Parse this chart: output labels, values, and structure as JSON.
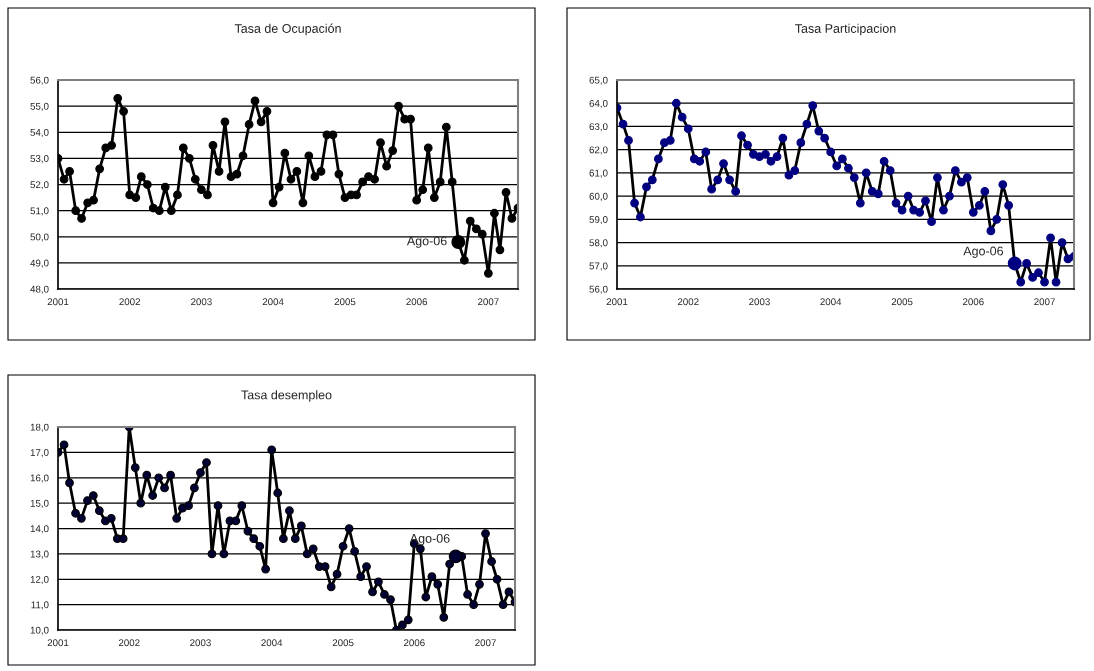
{
  "chart_data": [
    {
      "type": "line",
      "title": "Tasa de Ocupación",
      "marker": "circle",
      "line_style": "solid",
      "grid": "y",
      "legend": false,
      "x": [
        "2001-01",
        "2001-02",
        "2001-03",
        "2001-04",
        "2001-05",
        "2001-06",
        "2001-07",
        "2001-08",
        "2001-09",
        "2001-10",
        "2001-11",
        "2001-12",
        "2002-01",
        "2002-02",
        "2002-03",
        "2002-04",
        "2002-05",
        "2002-06",
        "2002-07",
        "2002-08",
        "2002-09",
        "2002-10",
        "2002-11",
        "2002-12",
        "2003-01",
        "2003-02",
        "2003-03",
        "2003-04",
        "2003-05",
        "2003-06",
        "2003-07",
        "2003-08",
        "2003-09",
        "2003-10",
        "2003-11",
        "2003-12",
        "2004-01",
        "2004-02",
        "2004-03",
        "2004-04",
        "2004-05",
        "2004-06",
        "2004-07",
        "2004-08",
        "2004-09",
        "2004-10",
        "2004-11",
        "2004-12",
        "2005-01",
        "2005-02",
        "2005-03",
        "2005-04",
        "2005-05",
        "2005-06",
        "2005-07",
        "2005-08",
        "2005-09",
        "2005-10",
        "2005-11",
        "2005-12",
        "2006-01",
        "2006-02",
        "2006-03",
        "2006-04",
        "2006-05",
        "2006-06",
        "2006-07",
        "2006-08",
        "2006-09",
        "2006-10",
        "2006-11",
        "2006-12",
        "2007-01",
        "2007-02",
        "2007-03",
        "2007-04",
        "2007-05",
        "2007-06"
      ],
      "series": [
        {
          "color": "#000000",
          "values": [
            53.0,
            52.2,
            52.5,
            51.0,
            50.7,
            51.3,
            51.4,
            52.6,
            53.4,
            53.5,
            55.3,
            54.8,
            51.6,
            51.5,
            52.3,
            52.0,
            51.1,
            51.0,
            51.9,
            51.0,
            51.6,
            53.4,
            53.0,
            52.2,
            51.8,
            51.6,
            53.5,
            52.5,
            54.4,
            52.3,
            52.4,
            53.1,
            54.3,
            55.2,
            54.4,
            54.8,
            51.3,
            51.9,
            53.2,
            52.2,
            52.5,
            51.3,
            53.1,
            52.3,
            52.5,
            53.9,
            53.9,
            52.4,
            51.5,
            51.6,
            51.6,
            52.1,
            52.3,
            52.2,
            53.6,
            52.7,
            53.3,
            55.0,
            54.5,
            54.5,
            51.4,
            51.8,
            53.4,
            51.5,
            52.1,
            54.2,
            52.1,
            49.8,
            49.1,
            50.6,
            50.3,
            50.1,
            48.6,
            50.9,
            49.5,
            51.7,
            50.7,
            51.1
          ]
        }
      ],
      "annotations": [
        {
          "text": "Ago-06",
          "x": "2006-08",
          "y": 49.8
        }
      ],
      "xlim": [
        "2001-01",
        "2007-06"
      ],
      "xticks": [
        {
          "value": "2001-01",
          "label": "2001"
        },
        {
          "value": "2002-01",
          "label": "2002"
        },
        {
          "value": "2003-01",
          "label": "2003"
        },
        {
          "value": "2004-01",
          "label": "2004"
        },
        {
          "value": "2005-01",
          "label": "2005"
        },
        {
          "value": "2006-01",
          "label": "2006"
        },
        {
          "value": "2007-01",
          "label": "2007"
        }
      ],
      "ylim": [
        48,
        56
      ],
      "yticks": [
        {
          "value": 48,
          "label": "48,0"
        },
        {
          "value": 49,
          "label": "49,0"
        },
        {
          "value": 50,
          "label": "50,0"
        },
        {
          "value": 51,
          "label": "51,0"
        },
        {
          "value": 52,
          "label": "52,0"
        },
        {
          "value": 53,
          "label": "53,0"
        },
        {
          "value": 54,
          "label": "54,0"
        },
        {
          "value": 55,
          "label": "55,0"
        },
        {
          "value": 56,
          "label": "56,0"
        }
      ]
    },
    {
      "type": "line",
      "title": "Tasa Participacion",
      "marker": "circle",
      "line_style": "solid",
      "grid": "y",
      "legend": false,
      "x": [
        "2001-01",
        "2001-02",
        "2001-03",
        "2001-04",
        "2001-05",
        "2001-06",
        "2001-07",
        "2001-08",
        "2001-09",
        "2001-10",
        "2001-11",
        "2001-12",
        "2002-01",
        "2002-02",
        "2002-03",
        "2002-04",
        "2002-05",
        "2002-06",
        "2002-07",
        "2002-08",
        "2002-09",
        "2002-10",
        "2002-11",
        "2002-12",
        "2003-01",
        "2003-02",
        "2003-03",
        "2003-04",
        "2003-05",
        "2003-06",
        "2003-07",
        "2003-08",
        "2003-09",
        "2003-10",
        "2003-11",
        "2003-12",
        "2004-01",
        "2004-02",
        "2004-03",
        "2004-04",
        "2004-05",
        "2004-06",
        "2004-07",
        "2004-08",
        "2004-09",
        "2004-10",
        "2004-11",
        "2004-12",
        "2005-01",
        "2005-02",
        "2005-03",
        "2005-04",
        "2005-05",
        "2005-06",
        "2005-07",
        "2005-08",
        "2005-09",
        "2005-10",
        "2005-11",
        "2005-12",
        "2006-01",
        "2006-02",
        "2006-03",
        "2006-04",
        "2006-05",
        "2006-06",
        "2006-07",
        "2006-08",
        "2006-09",
        "2006-10",
        "2006-11",
        "2006-12",
        "2007-01",
        "2007-02",
        "2007-03",
        "2007-04",
        "2007-05",
        "2007-06"
      ],
      "series": [
        {
          "color": "#000080",
          "values": [
            63.8,
            63.1,
            62.4,
            59.7,
            59.1,
            60.4,
            60.7,
            61.6,
            62.3,
            62.4,
            64.0,
            63.4,
            62.9,
            61.6,
            61.5,
            61.9,
            60.3,
            60.7,
            61.4,
            60.7,
            60.2,
            62.6,
            62.2,
            61.8,
            61.7,
            61.8,
            61.5,
            61.7,
            62.5,
            60.9,
            61.1,
            62.3,
            63.1,
            63.9,
            62.8,
            62.5,
            61.9,
            61.3,
            61.6,
            61.2,
            60.8,
            59.7,
            61.0,
            60.2,
            60.1,
            61.5,
            61.1,
            59.7,
            59.4,
            60.0,
            59.4,
            59.3,
            59.8,
            58.9,
            60.8,
            59.4,
            60.0,
            61.1,
            60.6,
            60.8,
            59.3,
            59.6,
            60.2,
            58.5,
            59.0,
            60.5,
            59.6,
            57.1,
            56.3,
            57.1,
            56.5,
            56.7,
            56.3,
            58.2,
            56.3,
            58.0,
            57.3,
            57.4
          ]
        }
      ],
      "annotations": [
        {
          "text": "Ago-06",
          "x": "2006-08",
          "y": 57.1
        }
      ],
      "xlim": [
        "2001-01",
        "2007-06"
      ],
      "xticks": [
        {
          "value": "2001-01",
          "label": "2001"
        },
        {
          "value": "2002-01",
          "label": "2002"
        },
        {
          "value": "2003-01",
          "label": "2003"
        },
        {
          "value": "2004-01",
          "label": "2004"
        },
        {
          "value": "2005-01",
          "label": "2005"
        },
        {
          "value": "2006-01",
          "label": "2006"
        },
        {
          "value": "2007-01",
          "label": "2007"
        }
      ],
      "ylim": [
        56,
        65
      ],
      "yticks": [
        {
          "value": 56,
          "label": "56,0"
        },
        {
          "value": 57,
          "label": "57,0"
        },
        {
          "value": 58,
          "label": "58,0"
        },
        {
          "value": 59,
          "label": "59,0"
        },
        {
          "value": 60,
          "label": "60,0"
        },
        {
          "value": 61,
          "label": "61,0"
        },
        {
          "value": 62,
          "label": "62,0"
        },
        {
          "value": 63,
          "label": "63,0"
        },
        {
          "value": 64,
          "label": "64,0"
        },
        {
          "value": 65,
          "label": "65,0"
        }
      ]
    },
    {
      "type": "line",
      "title": "Tasa desempleo",
      "marker": "circle",
      "line_style": "solid",
      "grid": "y",
      "legend": false,
      "x": [
        "2001-01",
        "2001-02",
        "2001-03",
        "2001-04",
        "2001-05",
        "2001-06",
        "2001-07",
        "2001-08",
        "2001-09",
        "2001-10",
        "2001-11",
        "2001-12",
        "2002-01",
        "2002-02",
        "2002-03",
        "2002-04",
        "2002-05",
        "2002-06",
        "2002-07",
        "2002-08",
        "2002-09",
        "2002-10",
        "2002-11",
        "2002-12",
        "2003-01",
        "2003-02",
        "2003-03",
        "2003-04",
        "2003-05",
        "2003-06",
        "2003-07",
        "2003-08",
        "2003-09",
        "2003-10",
        "2003-11",
        "2003-12",
        "2004-01",
        "2004-02",
        "2004-03",
        "2004-04",
        "2004-05",
        "2004-06",
        "2004-07",
        "2004-08",
        "2004-09",
        "2004-10",
        "2004-11",
        "2004-12",
        "2005-01",
        "2005-02",
        "2005-03",
        "2005-04",
        "2005-05",
        "2005-06",
        "2005-07",
        "2005-08",
        "2005-09",
        "2005-10",
        "2005-11",
        "2005-12",
        "2006-01",
        "2006-02",
        "2006-03",
        "2006-04",
        "2006-05",
        "2006-06",
        "2006-07",
        "2006-08",
        "2006-09",
        "2006-10",
        "2006-11",
        "2006-12",
        "2007-01",
        "2007-02",
        "2007-03",
        "2007-04",
        "2007-05",
        "2007-06"
      ],
      "series": [
        {
          "color": "#000033",
          "values": [
            17.0,
            17.3,
            15.8,
            14.6,
            14.4,
            15.1,
            15.3,
            14.7,
            14.3,
            14.4,
            13.6,
            13.6,
            18.0,
            16.4,
            15.0,
            16.1,
            15.3,
            16.0,
            15.6,
            16.1,
            14.4,
            14.8,
            14.9,
            15.6,
            16.2,
            16.6,
            13.0,
            14.9,
            13.0,
            14.3,
            14.3,
            14.9,
            13.9,
            13.6,
            13.3,
            12.4,
            17.1,
            15.4,
            13.6,
            14.7,
            13.6,
            14.1,
            13.0,
            13.2,
            12.5,
            12.5,
            11.7,
            12.2,
            13.3,
            14.0,
            13.1,
            12.1,
            12.5,
            11.5,
            11.9,
            11.4,
            11.2,
            10.0,
            10.2,
            10.4,
            13.4,
            13.2,
            11.3,
            12.1,
            11.8,
            10.5,
            12.6,
            12.9,
            12.9,
            11.4,
            11.0,
            11.8,
            13.8,
            12.7,
            12.0,
            11.0,
            11.5,
            11.1
          ]
        }
      ],
      "annotations": [
        {
          "text": "Ago-06",
          "x": "2006-08",
          "y": 12.9
        }
      ],
      "xlim": [
        "2001-01",
        "2007-06"
      ],
      "xticks": [
        {
          "value": "2001-01",
          "label": "2001"
        },
        {
          "value": "2002-01",
          "label": "2002"
        },
        {
          "value": "2003-01",
          "label": "2003"
        },
        {
          "value": "2004-01",
          "label": "2004"
        },
        {
          "value": "2005-01",
          "label": "2005"
        },
        {
          "value": "2006-01",
          "label": "2006"
        },
        {
          "value": "2007-01",
          "label": "2007"
        }
      ],
      "ylim": [
        10,
        18
      ],
      "yticks": [
        {
          "value": 10,
          "label": "10,0"
        },
        {
          "value": 11,
          "label": "11,0"
        },
        {
          "value": 12,
          "label": "12,0"
        },
        {
          "value": 13,
          "label": "13,0"
        },
        {
          "value": 14,
          "label": "14,0"
        },
        {
          "value": 15,
          "label": "15,0"
        },
        {
          "value": 16,
          "label": "16,0"
        },
        {
          "value": 17,
          "label": "17,0"
        },
        {
          "value": 18,
          "label": "18,0"
        }
      ]
    }
  ]
}
